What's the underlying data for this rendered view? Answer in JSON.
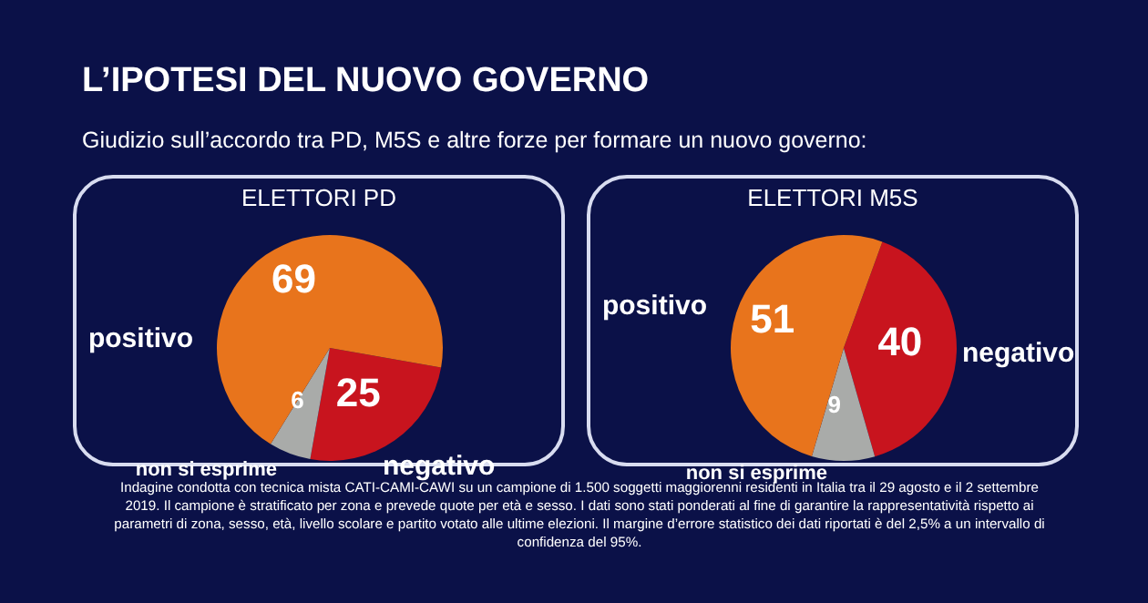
{
  "chart_data": [
    {
      "type": "pie",
      "title": "ELETTORI PD",
      "annotations": [
        "L’IPOTESI DEL NUOVO GOVERNO",
        "Giudizio sull’accordo tra PD, M5S e altre forze per formare un nuovo governo:"
      ],
      "categories": [
        "negativo",
        "non si esprime",
        "positivo"
      ],
      "values": [
        25,
        6,
        69
      ],
      "colors": [
        "#c8141e",
        "#a9aba9",
        "#e8741c"
      ],
      "data_labels": true,
      "legend": false
    },
    {
      "type": "pie",
      "title": "ELETTORI M5S",
      "annotations": [
        "Indagine condotta con tecnica mista CATI-CAMI-CAWI su un campione di 1.500 soggetti maggiorenni residenti in Italia tra il 29 agosto e il 2 settembre 2019. Il campione è stratificato per zona e prevede quote per età e sesso. I dati sono stati ponderati al fine di garantire la rappresentatività rispetto ai parametri di zona, sesso, età, livello scolare e partito votato alle ultime elezioni. Il margine d’errore statistico dei dati riportati è del 2,5% a un intervallo di confidenza del 95%."
      ],
      "categories": [
        "negativo",
        "non si esprime",
        "positivo"
      ],
      "values": [
        40,
        9,
        51
      ],
      "colors": [
        "#c8141e",
        "#a9aba9",
        "#e8741c"
      ],
      "data_labels": true,
      "legend": false
    }
  ]
}
